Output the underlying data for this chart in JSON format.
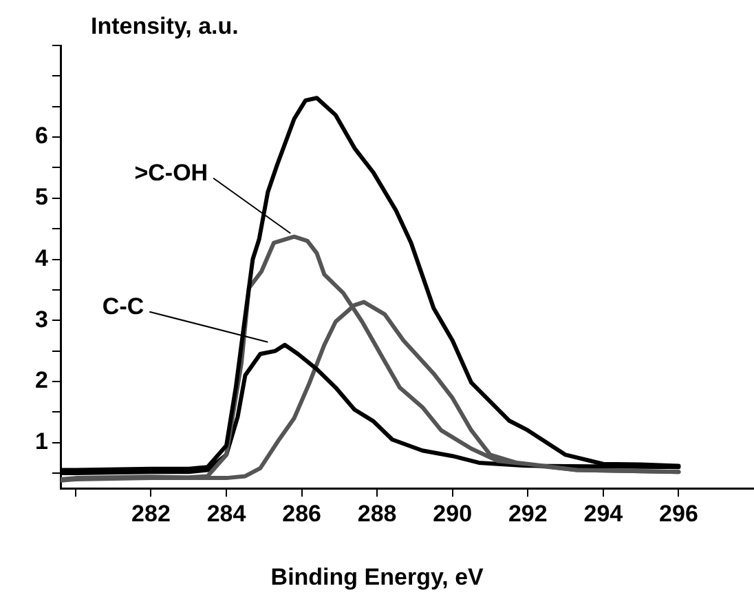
{
  "chart_data": {
    "type": "line",
    "ylabel": "Intensity, a.u.",
    "xlabel": "Binding Energy, eV",
    "xlim": [
      279.6,
      298
    ],
    "ylim": [
      0.25,
      7.5
    ],
    "xticks": [
      {
        "value": 280,
        "label": null
      },
      282,
      284,
      286,
      288,
      290,
      292,
      294,
      296
    ],
    "yticks": [
      {
        "value": 0.5,
        "label": null
      },
      1,
      {
        "value": 1.5,
        "label": null
      },
      2,
      {
        "value": 2.5,
        "label": null
      },
      3,
      {
        "value": 3.5,
        "label": null
      },
      4,
      {
        "value": 4.5,
        "label": null
      },
      5,
      {
        "value": 5.5,
        "label": null
      },
      6,
      {
        "value": 6.5,
        "label": null
      },
      {
        "value": 7,
        "label": null
      },
      {
        "value": 7.5,
        "label": null
      }
    ],
    "grid": false,
    "legend": false,
    "marker": "none",
    "line_style": "solid",
    "annotations": [
      {
        "text": ">C-OH",
        "x": 285.7,
        "y": 4.38
      },
      {
        "text": "C-C",
        "x": 285.1,
        "y": 2.6
      }
    ],
    "series": [
      {
        "color": "#000000",
        "x": [
          279.6,
          280,
          282,
          283,
          283.5,
          284,
          284.25,
          284.5,
          284.7,
          284.87,
          285.1,
          285.35,
          285.8,
          286.1,
          286.4,
          286.9,
          287.4,
          287.9,
          288.5,
          288.9,
          289.5,
          290,
          290.5,
          291,
          291.5,
          292,
          292.5,
          293,
          294,
          295,
          296
        ],
        "values": [
          0.55,
          0.55,
          0.57,
          0.57,
          0.6,
          0.95,
          1.9,
          3.07,
          4.0,
          4.33,
          5.1,
          5.55,
          6.3,
          6.6,
          6.64,
          6.36,
          5.82,
          5.42,
          4.8,
          4.27,
          3.2,
          2.67,
          1.98,
          1.67,
          1.36,
          1.2,
          1.0,
          0.8,
          0.65,
          0.64,
          0.62
        ]
      },
      {
        "color": "#555555",
        "x": [
          279.6,
          280,
          282,
          283,
          283.5,
          284,
          284.4,
          284.6,
          284.93,
          285.26,
          285.8,
          286.15,
          286.4,
          286.6,
          287.1,
          287.6,
          288.1,
          288.6,
          289.2,
          289.7,
          290.5,
          291.2,
          292,
          293.3,
          296
        ],
        "values": [
          0.4,
          0.42,
          0.44,
          0.43,
          0.45,
          0.8,
          2.3,
          3.53,
          3.8,
          4.27,
          4.37,
          4.3,
          4.1,
          3.75,
          3.45,
          2.98,
          2.44,
          1.9,
          1.58,
          1.2,
          0.9,
          0.7,
          0.65,
          0.55,
          0.52
        ]
      },
      {
        "color": "#000000",
        "x": [
          279.6,
          280,
          282,
          283,
          283.5,
          284,
          284.3,
          284.5,
          284.9,
          285.3,
          285.55,
          285.9,
          286.4,
          286.9,
          287.4,
          287.9,
          288.4,
          289.2,
          290,
          290.7,
          292,
          296
        ],
        "values": [
          0.5,
          0.5,
          0.52,
          0.52,
          0.55,
          0.8,
          1.42,
          2.1,
          2.45,
          2.5,
          2.6,
          2.45,
          2.2,
          1.9,
          1.54,
          1.35,
          1.05,
          0.87,
          0.78,
          0.67,
          0.62,
          0.6
        ]
      },
      {
        "color": "#555555",
        "x": [
          279.6,
          280,
          282,
          283,
          284,
          284.5,
          284.9,
          285.4,
          285.8,
          286.2,
          286.6,
          286.9,
          287.4,
          287.65,
          288.2,
          288.7,
          289.5,
          290,
          290.5,
          291,
          291.8,
          293.3,
          296
        ],
        "values": [
          0.38,
          0.4,
          0.42,
          0.42,
          0.42,
          0.45,
          0.58,
          1.05,
          1.4,
          1.97,
          2.6,
          2.98,
          3.25,
          3.3,
          3.1,
          2.67,
          2.13,
          1.73,
          1.2,
          0.8,
          0.65,
          0.55,
          0.52
        ]
      }
    ]
  }
}
